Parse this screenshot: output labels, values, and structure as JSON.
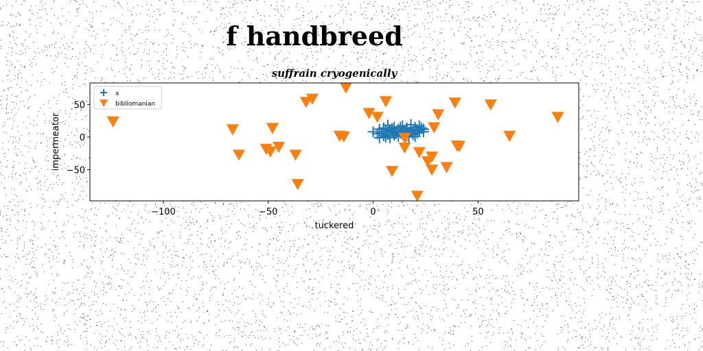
{
  "figure_title": "f handbreed",
  "chart_data": {
    "type": "scatter",
    "title": "suffrain cryogenically",
    "xlabel": "tuckered",
    "ylabel": "impermeator",
    "xlim": [
      -135,
      98
    ],
    "ylim": [
      -98,
      83
    ],
    "xticks": [
      -100,
      -50,
      0,
      50
    ],
    "xtick_labels": [
      "−100",
      "−50",
      "0",
      "50"
    ],
    "yticks": [
      50,
      0,
      -50
    ],
    "ytick_labels": [
      "50",
      "0",
      "−50"
    ],
    "grid": false,
    "legend_position": "top-left",
    "series": [
      {
        "name": "x",
        "marker": "plus",
        "color": "#1f77b4",
        "points": [
          [
            0,
            8
          ],
          [
            2,
            5
          ],
          [
            3,
            12
          ],
          [
            4,
            6
          ],
          [
            5,
            14
          ],
          [
            5,
            2
          ],
          [
            6,
            9
          ],
          [
            7,
            18
          ],
          [
            7,
            4
          ],
          [
            8,
            11
          ],
          [
            8,
            -1
          ],
          [
            9,
            7
          ],
          [
            10,
            15
          ],
          [
            10,
            3
          ],
          [
            11,
            9
          ],
          [
            12,
            1
          ],
          [
            12,
            12
          ],
          [
            13,
            6
          ],
          [
            14,
            17
          ],
          [
            14,
            4
          ],
          [
            15,
            10
          ],
          [
            16,
            2
          ],
          [
            16,
            14
          ],
          [
            17,
            7
          ],
          [
            18,
            12
          ],
          [
            18,
            19
          ],
          [
            19,
            4
          ],
          [
            19,
            9
          ],
          [
            20,
            15
          ],
          [
            20,
            1
          ],
          [
            21,
            11
          ],
          [
            21,
            6
          ],
          [
            22,
            17
          ],
          [
            22,
            10
          ],
          [
            23,
            14
          ],
          [
            24,
            8
          ],
          [
            24,
            12
          ],
          [
            3,
            -1
          ],
          [
            6,
            0
          ],
          [
            9,
            13
          ],
          [
            13,
            15
          ],
          [
            17,
            0
          ],
          [
            11,
            5
          ],
          [
            15,
            8
          ]
        ]
      },
      {
        "name": "bibliomanian",
        "marker": "triangle-down",
        "color": "#ff7f0e",
        "points": [
          [
            -124,
            24
          ],
          [
            -67,
            12
          ],
          [
            -64,
            -27
          ],
          [
            -51,
            -18
          ],
          [
            -49,
            -22
          ],
          [
            -48,
            14
          ],
          [
            -45,
            -15
          ],
          [
            -37,
            -27
          ],
          [
            -36,
            -72
          ],
          [
            -32,
            54
          ],
          [
            -29,
            59
          ],
          [
            -16,
            2
          ],
          [
            -14,
            1
          ],
          [
            -13,
            76
          ],
          [
            -2,
            37
          ],
          [
            2,
            31
          ],
          [
            6,
            55
          ],
          [
            9,
            -52
          ],
          [
            15,
            -1
          ],
          [
            15,
            -16
          ],
          [
            21,
            -90
          ],
          [
            22,
            -23
          ],
          [
            26,
            -37
          ],
          [
            28,
            -50
          ],
          [
            28,
            -30
          ],
          [
            29,
            15
          ],
          [
            31,
            35
          ],
          [
            35,
            -46
          ],
          [
            39,
            53
          ],
          [
            40,
            -13
          ],
          [
            41,
            -14
          ],
          [
            56,
            50
          ],
          [
            65,
            2
          ],
          [
            88,
            31
          ]
        ]
      }
    ]
  }
}
